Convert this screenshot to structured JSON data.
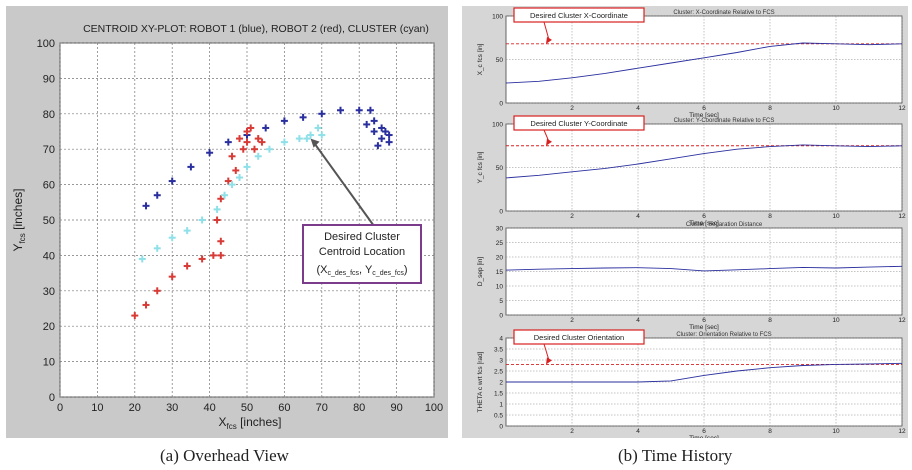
{
  "captions": {
    "left": "(a)  Overhead View",
    "right": "(b)  Time History"
  },
  "colors": {
    "robot1": "#2a2f9e",
    "robot2": "#d83a36",
    "cluster": "#8fe0e8",
    "desired_line": "#d82020",
    "callout_border": "#d82020",
    "annotation_box_border": "#7b3c8c"
  },
  "chart_data": [
    {
      "type": "scatter",
      "title": "CENTROID XY-PLOT:  ROBOT 1 (blue), ROBOT 2 (red), CLUSTER (cyan)",
      "xlabel": "X_fcs [inches]",
      "ylabel": "Y_fcs [inches]",
      "xlim": [
        0,
        100
      ],
      "ylim": [
        0,
        100
      ],
      "xticks": [
        0,
        10,
        20,
        30,
        40,
        50,
        60,
        70,
        80,
        90,
        100
      ],
      "yticks": [
        0,
        10,
        20,
        30,
        40,
        50,
        60,
        70,
        80,
        90,
        100
      ],
      "grid": true,
      "series": [
        {
          "name": "ROBOT 1",
          "color": "blue",
          "points": [
            [
              23,
              54
            ],
            [
              26,
              57
            ],
            [
              30,
              61
            ],
            [
              35,
              65
            ],
            [
              40,
              69
            ],
            [
              45,
              72
            ],
            [
              50,
              74
            ],
            [
              55,
              76
            ],
            [
              60,
              78
            ],
            [
              65,
              79
            ],
            [
              70,
              80
            ],
            [
              75,
              81
            ],
            [
              80,
              81
            ],
            [
              83,
              81
            ],
            [
              84,
              78
            ],
            [
              82,
              77
            ],
            [
              84,
              75
            ],
            [
              86,
              76
            ],
            [
              88,
              74
            ],
            [
              86,
              73
            ],
            [
              88,
              72
            ],
            [
              85,
              71
            ],
            [
              87,
              75
            ]
          ]
        },
        {
          "name": "ROBOT 2",
          "color": "red",
          "points": [
            [
              20,
              23
            ],
            [
              23,
              26
            ],
            [
              26,
              30
            ],
            [
              30,
              34
            ],
            [
              34,
              37
            ],
            [
              38,
              39
            ],
            [
              41,
              40
            ],
            [
              43,
              40
            ],
            [
              43,
              44
            ],
            [
              42,
              50
            ],
            [
              43,
              56
            ],
            [
              45,
              61
            ],
            [
              47,
              64
            ],
            [
              46,
              68
            ],
            [
              49,
              70
            ],
            [
              48,
              73
            ],
            [
              50,
              75
            ],
            [
              53,
              73
            ],
            [
              52,
              70
            ],
            [
              54,
              72
            ],
            [
              51,
              76
            ],
            [
              50,
              72
            ]
          ]
        },
        {
          "name": "CLUSTER",
          "color": "cyan",
          "points": [
            [
              22,
              39
            ],
            [
              26,
              42
            ],
            [
              30,
              45
            ],
            [
              34,
              47
            ],
            [
              38,
              50
            ],
            [
              42,
              53
            ],
            [
              44,
              57
            ],
            [
              46,
              60
            ],
            [
              48,
              62
            ],
            [
              50,
              65
            ],
            [
              53,
              68
            ],
            [
              56,
              70
            ],
            [
              60,
              72
            ],
            [
              64,
              73
            ],
            [
              67,
              74
            ],
            [
              69,
              76
            ],
            [
              66,
              73
            ],
            [
              70,
              74
            ]
          ]
        }
      ],
      "annotation": {
        "line1": "Desired Cluster",
        "line2": "Centroid Location",
        "line3": "(X_c_des_fcs, Y_c_des_fcs)",
        "target": [
          67,
          73
        ]
      }
    },
    {
      "type": "line",
      "title": "Cluster: X-Coordinate Relative to FCS",
      "callout": "Desired Cluster X-Coordinate",
      "xlabel": "Time [sec]",
      "ylabel": "X_c fcs [in]",
      "xlim": [
        0,
        12
      ],
      "ylim": [
        0,
        100
      ],
      "xticks": [
        2,
        4,
        6,
        8,
        10,
        12
      ],
      "yticks": [
        0,
        50,
        100
      ],
      "grid": true,
      "desired": 68,
      "series": [
        {
          "x": [
            0,
            1,
            2,
            3,
            4,
            5,
            6,
            7,
            8,
            9,
            10,
            11,
            12
          ],
          "values": [
            23,
            25,
            29,
            34,
            40,
            46,
            52,
            58,
            65,
            69,
            68,
            67,
            68
          ]
        }
      ]
    },
    {
      "type": "line",
      "title": "Cluster: Y-Coordinate Relative to FCS",
      "callout": "Desired Cluster Y-Coordinate",
      "xlabel": "Time [sec]",
      "ylabel": "Y_c fcs [in]",
      "xlim": [
        0,
        12
      ],
      "ylim": [
        0,
        100
      ],
      "xticks": [
        2,
        4,
        6,
        8,
        10,
        12
      ],
      "yticks": [
        0,
        50,
        100
      ],
      "grid": true,
      "desired": 75,
      "series": [
        {
          "x": [
            0,
            1,
            2,
            3,
            4,
            5,
            6,
            7,
            8,
            9,
            10,
            11,
            12
          ],
          "values": [
            38,
            41,
            45,
            49,
            54,
            60,
            66,
            71,
            74,
            76,
            75,
            74,
            75
          ]
        }
      ]
    },
    {
      "type": "line",
      "title": "Cluster: Separation Distance",
      "xlabel": "Time [sec]",
      "ylabel": "D_sep [in]",
      "xlim": [
        0,
        12
      ],
      "ylim": [
        0,
        30
      ],
      "xticks": [
        2,
        4,
        6,
        8,
        10,
        12
      ],
      "yticks": [
        0,
        5,
        10,
        15,
        20,
        25,
        30
      ],
      "grid": true,
      "series": [
        {
          "x": [
            0,
            1,
            2,
            3,
            4,
            5,
            6,
            7,
            8,
            9,
            10,
            11,
            12
          ],
          "values": [
            15.5,
            15.8,
            16,
            16.2,
            16.3,
            16,
            15.2,
            15.6,
            16,
            16.4,
            16.2,
            16.5,
            16.8
          ]
        }
      ]
    },
    {
      "type": "line",
      "title": "Cluster: Orientation Relative to FCS",
      "callout": "Desired Cluster Orientation",
      "xlabel": "Time [sec]",
      "ylabel": "THETA c wrt fcs [rad]",
      "xlim": [
        0,
        12
      ],
      "ylim": [
        0,
        4
      ],
      "xticks": [
        2,
        4,
        6,
        8,
        10,
        12
      ],
      "yticks": [
        0,
        0.5,
        1,
        1.5,
        2,
        2.5,
        3,
        3.5,
        4
      ],
      "grid": true,
      "desired": 2.8,
      "series": [
        {
          "x": [
            0,
            1,
            2,
            3,
            4,
            5,
            6,
            7,
            8,
            9,
            10,
            11,
            12
          ],
          "values": [
            2.0,
            2.0,
            2.0,
            2.0,
            2.0,
            2.05,
            2.3,
            2.5,
            2.65,
            2.75,
            2.8,
            2.82,
            2.85
          ]
        }
      ]
    }
  ]
}
